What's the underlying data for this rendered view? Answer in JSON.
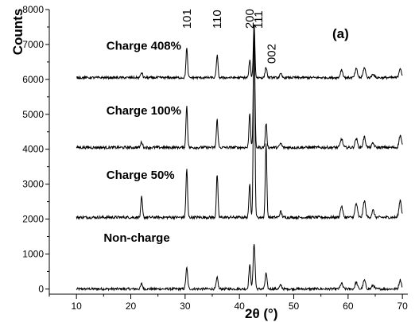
{
  "chart_data": {
    "type": "line",
    "title": "",
    "panel_label": "(a)",
    "xlabel": "2θ (°)",
    "ylabel": "Counts",
    "xlim": [
      5,
      71
    ],
    "ylim": [
      -150,
      8000
    ],
    "x_ticks": [
      10,
      20,
      30,
      40,
      50,
      60,
      70
    ],
    "y_ticks": [
      0,
      1000,
      2000,
      3000,
      4000,
      5000,
      6000,
      7000,
      8000
    ],
    "y_tick_labels": [
      "0",
      "1000",
      "2000",
      "3000",
      "4000",
      "5000",
      "6000",
      "7000",
      "8000"
    ],
    "grid": false,
    "x_range": [
      10,
      70
    ],
    "series": [
      {
        "name": "Non-charge",
        "baseline": 0,
        "noise": 35,
        "peaks": [
          {
            "x": 22.0,
            "h": 150,
            "w": 0.35
          },
          {
            "x": 30.3,
            "h": 600,
            "w": 0.35
          },
          {
            "x": 35.9,
            "h": 320,
            "w": 0.35
          },
          {
            "x": 41.9,
            "h": 680,
            "w": 0.35
          },
          {
            "x": 42.7,
            "h": 1320,
            "w": 0.35
          },
          {
            "x": 44.9,
            "h": 450,
            "w": 0.35
          },
          {
            "x": 47.6,
            "h": 110,
            "w": 0.4
          },
          {
            "x": 58.8,
            "h": 160,
            "w": 0.45
          },
          {
            "x": 61.5,
            "h": 190,
            "w": 0.45
          },
          {
            "x": 63.0,
            "h": 250,
            "w": 0.45
          },
          {
            "x": 64.6,
            "h": 110,
            "w": 0.45
          },
          {
            "x": 69.6,
            "h": 260,
            "w": 0.45
          }
        ]
      },
      {
        "name": "Charge 50%",
        "baseline": 2050,
        "noise": 40,
        "peaks": [
          {
            "x": 22.0,
            "h": 580,
            "w": 0.3
          },
          {
            "x": 30.3,
            "h": 1400,
            "w": 0.3
          },
          {
            "x": 35.9,
            "h": 1230,
            "w": 0.3
          },
          {
            "x": 41.9,
            "h": 1000,
            "w": 0.3
          },
          {
            "x": 42.7,
            "h": 5500,
            "w": 0.3
          },
          {
            "x": 44.9,
            "h": 2100,
            "w": 0.3
          },
          {
            "x": 47.6,
            "h": 160,
            "w": 0.4
          },
          {
            "x": 58.8,
            "h": 320,
            "w": 0.45
          },
          {
            "x": 61.5,
            "h": 400,
            "w": 0.45
          },
          {
            "x": 63.0,
            "h": 480,
            "w": 0.45
          },
          {
            "x": 64.6,
            "h": 200,
            "w": 0.45
          },
          {
            "x": 69.6,
            "h": 500,
            "w": 0.45
          }
        ]
      },
      {
        "name": "Charge 100%",
        "baseline": 4050,
        "noise": 40,
        "peaks": [
          {
            "x": 22.0,
            "h": 160,
            "w": 0.35
          },
          {
            "x": 30.3,
            "h": 1200,
            "w": 0.3
          },
          {
            "x": 35.9,
            "h": 800,
            "w": 0.3
          },
          {
            "x": 41.9,
            "h": 1000,
            "w": 0.3
          },
          {
            "x": 42.7,
            "h": 3300,
            "w": 0.3
          },
          {
            "x": 44.9,
            "h": 700,
            "w": 0.3
          },
          {
            "x": 47.6,
            "h": 120,
            "w": 0.4
          },
          {
            "x": 58.8,
            "h": 250,
            "w": 0.45
          },
          {
            "x": 61.5,
            "h": 260,
            "w": 0.45
          },
          {
            "x": 63.0,
            "h": 300,
            "w": 0.45
          },
          {
            "x": 64.6,
            "h": 120,
            "w": 0.45
          },
          {
            "x": 69.6,
            "h": 350,
            "w": 0.45
          }
        ]
      },
      {
        "name": "Charge 408%",
        "baseline": 6050,
        "noise": 35,
        "peaks": [
          {
            "x": 22.0,
            "h": 150,
            "w": 0.35
          },
          {
            "x": 30.3,
            "h": 850,
            "w": 0.3
          },
          {
            "x": 35.9,
            "h": 650,
            "w": 0.3
          },
          {
            "x": 41.9,
            "h": 500,
            "w": 0.3
          },
          {
            "x": 42.7,
            "h": 1550,
            "w": 0.3
          },
          {
            "x": 44.9,
            "h": 300,
            "w": 0.35
          },
          {
            "x": 47.6,
            "h": 100,
            "w": 0.4
          },
          {
            "x": 58.8,
            "h": 230,
            "w": 0.45
          },
          {
            "x": 61.5,
            "h": 250,
            "w": 0.45
          },
          {
            "x": 63.0,
            "h": 290,
            "w": 0.45
          },
          {
            "x": 64.6,
            "h": 110,
            "w": 0.45
          },
          {
            "x": 69.6,
            "h": 280,
            "w": 0.45
          }
        ]
      }
    ],
    "pattern_labels": [
      {
        "text": "Non-charge",
        "x": 15,
        "y": 1350
      },
      {
        "text": "Charge 50%",
        "x": 15.5,
        "y": 3150
      },
      {
        "text": "Charge 100%",
        "x": 15.5,
        "y": 5000
      },
      {
        "text": "Charge 408%",
        "x": 15.5,
        "y": 6850
      }
    ],
    "peak_labels": [
      {
        "text": "101",
        "x": 30.3,
        "y": 7450,
        "rotate": true
      },
      {
        "text": "110",
        "x": 35.9,
        "y": 7450,
        "rotate": true
      },
      {
        "text": "200",
        "x": 41.9,
        "y": 7450,
        "rotate": true
      },
      {
        "text": "111",
        "x": 43.5,
        "y": 7450,
        "rotate": true
      },
      {
        "text": "002",
        "x": 45.9,
        "y": 6450,
        "rotate": true
      }
    ]
  }
}
